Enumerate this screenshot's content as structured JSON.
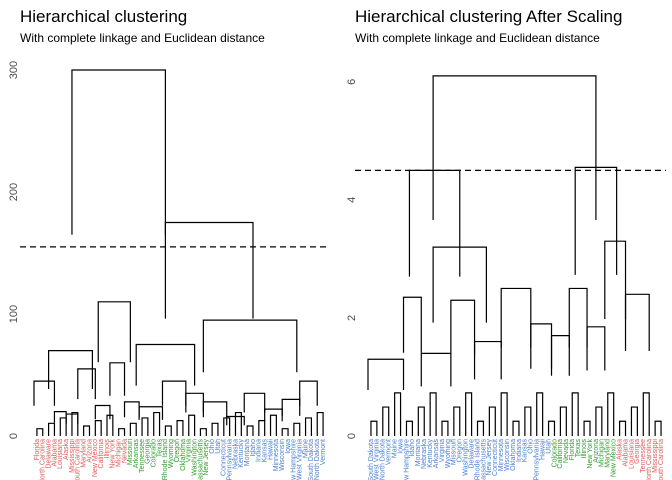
{
  "chart_data": [
    {
      "type": "dendrogram",
      "title": "Hierarchical clustering",
      "subtitle": "With complete linkage and Euclidean distance",
      "ylim": [
        0,
        300
      ],
      "yticks": [
        0,
        100,
        200,
        300
      ],
      "cut_height": 155,
      "merges": [
        {
          "x_start": 0.0,
          "x_end": 0.07,
          "h": 45
        },
        {
          "x_start": 0.07,
          "x_end": 0.11,
          "h": 20
        },
        {
          "x_start": 0.11,
          "x_end": 0.15,
          "h": 18
        },
        {
          "x_start": 0.15,
          "x_end": 0.21,
          "h": 55
        },
        {
          "x_start": 0.21,
          "x_end": 0.26,
          "h": 25
        },
        {
          "x_start": 0.26,
          "x_end": 0.31,
          "h": 60
        },
        {
          "x_start": 0.31,
          "x_end": 0.36,
          "h": 28
        },
        {
          "x_start": 0.36,
          "x_end": 0.44,
          "h": 24
        },
        {
          "x_start": 0.44,
          "x_end": 0.52,
          "h": 45
        },
        {
          "x_start": 0.52,
          "x_end": 0.58,
          "h": 35
        },
        {
          "x_start": 0.58,
          "x_end": 0.66,
          "h": 28
        },
        {
          "x_start": 0.66,
          "x_end": 0.72,
          "h": 16
        },
        {
          "x_start": 0.72,
          "x_end": 0.79,
          "h": 35
        },
        {
          "x_start": 0.79,
          "x_end": 0.85,
          "h": 22
        },
        {
          "x_start": 0.85,
          "x_end": 0.91,
          "h": 30
        },
        {
          "x_start": 0.91,
          "x_end": 0.97,
          "h": 45
        },
        {
          "x_start": 0.05,
          "x_end": 0.2,
          "h": 70
        },
        {
          "x_start": 0.22,
          "x_end": 0.33,
          "h": 110
        },
        {
          "x_start": 0.35,
          "x_end": 0.55,
          "h": 75
        },
        {
          "x_start": 0.58,
          "x_end": 0.9,
          "h": 95
        },
        {
          "x_start": 0.13,
          "x_end": 0.45,
          "h": 300
        },
        {
          "x_start": 0.45,
          "x_end": 0.75,
          "h": 175
        }
      ],
      "leaves": [
        {
          "label": "Florida",
          "color": "#e05a5a"
        },
        {
          "label": "North Carolina",
          "color": "#e05a5a"
        },
        {
          "label": "Delaware",
          "color": "#e05a5a"
        },
        {
          "label": "Alabama",
          "color": "#e05a5a"
        },
        {
          "label": "Louisiana",
          "color": "#e05a5a"
        },
        {
          "label": "Alaska",
          "color": "#e05a5a"
        },
        {
          "label": "Mississippi",
          "color": "#e05a5a"
        },
        {
          "label": "South Carolina",
          "color": "#e05a5a"
        },
        {
          "label": "Maryland",
          "color": "#e05a5a"
        },
        {
          "label": "Arizona",
          "color": "#e05a5a"
        },
        {
          "label": "New Mexico",
          "color": "#e05a5a"
        },
        {
          "label": "California",
          "color": "#e05a5a"
        },
        {
          "label": "Illinois",
          "color": "#e05a5a"
        },
        {
          "label": "New York",
          "color": "#e05a5a"
        },
        {
          "label": "Michigan",
          "color": "#e05a5a"
        },
        {
          "label": "Nevada",
          "color": "#e05a5a"
        },
        {
          "label": "Missouri",
          "color": "#2ca02c"
        },
        {
          "label": "Arkansas",
          "color": "#2ca02c"
        },
        {
          "label": "Tennessee",
          "color": "#2ca02c"
        },
        {
          "label": "Georgia",
          "color": "#2ca02c"
        },
        {
          "label": "Colorado",
          "color": "#2ca02c"
        },
        {
          "label": "Texas",
          "color": "#2ca02c"
        },
        {
          "label": "Rhode Island",
          "color": "#2ca02c"
        },
        {
          "label": "Wyoming",
          "color": "#2ca02c"
        },
        {
          "label": "Oregon",
          "color": "#2ca02c"
        },
        {
          "label": "Oklahoma",
          "color": "#2ca02c"
        },
        {
          "label": "Virginia",
          "color": "#2ca02c"
        },
        {
          "label": "Washington",
          "color": "#2ca02c"
        },
        {
          "label": "Massachusetts",
          "color": "#2ca02c"
        },
        {
          "label": "New Jersey",
          "color": "#2ca02c"
        },
        {
          "label": "Ohio",
          "color": "#4a7fd6"
        },
        {
          "label": "Utah",
          "color": "#4a7fd6"
        },
        {
          "label": "Connecticut",
          "color": "#4a7fd6"
        },
        {
          "label": "Pennsylvania",
          "color": "#4a7fd6"
        },
        {
          "label": "Nebraska",
          "color": "#4a7fd6"
        },
        {
          "label": "Kentucky",
          "color": "#4a7fd6"
        },
        {
          "label": "Montana",
          "color": "#4a7fd6"
        },
        {
          "label": "Idaho",
          "color": "#4a7fd6"
        },
        {
          "label": "Indiana",
          "color": "#4a7fd6"
        },
        {
          "label": "Kansas",
          "color": "#4a7fd6"
        },
        {
          "label": "Hawaii",
          "color": "#4a7fd6"
        },
        {
          "label": "Minnesota",
          "color": "#4a7fd6"
        },
        {
          "label": "Wisconsin",
          "color": "#4a7fd6"
        },
        {
          "label": "Iowa",
          "color": "#4a7fd6"
        },
        {
          "label": "New Hampshire",
          "color": "#4a7fd6"
        },
        {
          "label": "West Virginia",
          "color": "#4a7fd6"
        },
        {
          "label": "Maine",
          "color": "#4a7fd6"
        },
        {
          "label": "South Dakota",
          "color": "#4a7fd6"
        },
        {
          "label": "North Dakota",
          "color": "#4a7fd6"
        },
        {
          "label": "Vermont",
          "color": "#4a7fd6"
        }
      ]
    },
    {
      "type": "dendrogram",
      "title": "Hierarchical clustering After Scaling",
      "subtitle": "With complete linkage and Euclidean distance",
      "ylim": [
        0,
        6.2
      ],
      "yticks": [
        0,
        2,
        4,
        6
      ],
      "cut_height": 4.5,
      "merges": [
        {
          "x_start": 0.0,
          "x_end": 0.12,
          "h": 1.3
        },
        {
          "x_start": 0.12,
          "x_end": 0.18,
          "h": 2.35
        },
        {
          "x_start": 0.18,
          "x_end": 0.28,
          "h": 1.4
        },
        {
          "x_start": 0.28,
          "x_end": 0.36,
          "h": 2.3
        },
        {
          "x_start": 0.36,
          "x_end": 0.45,
          "h": 1.6
        },
        {
          "x_start": 0.45,
          "x_end": 0.55,
          "h": 2.5
        },
        {
          "x_start": 0.55,
          "x_end": 0.62,
          "h": 1.9
        },
        {
          "x_start": 0.62,
          "x_end": 0.68,
          "h": 1.7
        },
        {
          "x_start": 0.68,
          "x_end": 0.74,
          "h": 2.5
        },
        {
          "x_start": 0.74,
          "x_end": 0.8,
          "h": 1.85
        },
        {
          "x_start": 0.8,
          "x_end": 0.87,
          "h": 3.3
        },
        {
          "x_start": 0.87,
          "x_end": 0.95,
          "h": 2.4
        },
        {
          "x_start": 0.22,
          "x_end": 0.4,
          "h": 3.2
        },
        {
          "x_start": 0.14,
          "x_end": 0.31,
          "h": 4.5
        },
        {
          "x_start": 0.7,
          "x_end": 0.84,
          "h": 4.55
        },
        {
          "x_start": 0.22,
          "x_end": 0.77,
          "h": 6.1
        }
      ],
      "leaves": [
        {
          "label": "South Dakota",
          "color": "#4a7fd6"
        },
        {
          "label": "West Virginia",
          "color": "#4a7fd6"
        },
        {
          "label": "North Dakota",
          "color": "#4a7fd6"
        },
        {
          "label": "Vermont",
          "color": "#4a7fd6"
        },
        {
          "label": "Maine",
          "color": "#4a7fd6"
        },
        {
          "label": "Iowa",
          "color": "#4a7fd6"
        },
        {
          "label": "New Hampshire",
          "color": "#4a7fd6"
        },
        {
          "label": "Idaho",
          "color": "#4a7fd6"
        },
        {
          "label": "Montana",
          "color": "#4a7fd6"
        },
        {
          "label": "Nebraska",
          "color": "#4a7fd6"
        },
        {
          "label": "Kentucky",
          "color": "#4a7fd6"
        },
        {
          "label": "Arkansas",
          "color": "#4a7fd6"
        },
        {
          "label": "Virginia",
          "color": "#4a7fd6"
        },
        {
          "label": "Wyoming",
          "color": "#4a7fd6"
        },
        {
          "label": "Missouri",
          "color": "#4a7fd6"
        },
        {
          "label": "Oregon",
          "color": "#4a7fd6"
        },
        {
          "label": "Washington",
          "color": "#4a7fd6"
        },
        {
          "label": "Delaware",
          "color": "#4a7fd6"
        },
        {
          "label": "Rhode Island",
          "color": "#4a7fd6"
        },
        {
          "label": "Massachusetts",
          "color": "#4a7fd6"
        },
        {
          "label": "New Jersey",
          "color": "#4a7fd6"
        },
        {
          "label": "Connecticut",
          "color": "#4a7fd6"
        },
        {
          "label": "Minnesota",
          "color": "#4a7fd6"
        },
        {
          "label": "Wisconsin",
          "color": "#4a7fd6"
        },
        {
          "label": "Oklahoma",
          "color": "#4a7fd6"
        },
        {
          "label": "Indiana",
          "color": "#4a7fd6"
        },
        {
          "label": "Kansas",
          "color": "#4a7fd6"
        },
        {
          "label": "Ohio",
          "color": "#4a7fd6"
        },
        {
          "label": "Pennsylvania",
          "color": "#4a7fd6"
        },
        {
          "label": "Hawaii",
          "color": "#4a7fd6"
        },
        {
          "label": "Utah",
          "color": "#4a7fd6"
        },
        {
          "label": "Colorado",
          "color": "#2ca02c"
        },
        {
          "label": "California",
          "color": "#2ca02c"
        },
        {
          "label": "Nevada",
          "color": "#2ca02c"
        },
        {
          "label": "Florida",
          "color": "#2ca02c"
        },
        {
          "label": "Texas",
          "color": "#2ca02c"
        },
        {
          "label": "Illinois",
          "color": "#2ca02c"
        },
        {
          "label": "New York",
          "color": "#2ca02c"
        },
        {
          "label": "Arizona",
          "color": "#2ca02c"
        },
        {
          "label": "Michigan",
          "color": "#2ca02c"
        },
        {
          "label": "Maryland",
          "color": "#2ca02c"
        },
        {
          "label": "New Mexico",
          "color": "#2ca02c"
        },
        {
          "label": "Alaska",
          "color": "#e05a5a"
        },
        {
          "label": "Alabama",
          "color": "#e05a5a"
        },
        {
          "label": "Louisiana",
          "color": "#e05a5a"
        },
        {
          "label": "Georgia",
          "color": "#e05a5a"
        },
        {
          "label": "Tennessee",
          "color": "#e05a5a"
        },
        {
          "label": "North Carolina",
          "color": "#e05a5a"
        },
        {
          "label": "Mississippi",
          "color": "#e05a5a"
        },
        {
          "label": "South Carolina",
          "color": "#e05a5a"
        }
      ]
    }
  ]
}
